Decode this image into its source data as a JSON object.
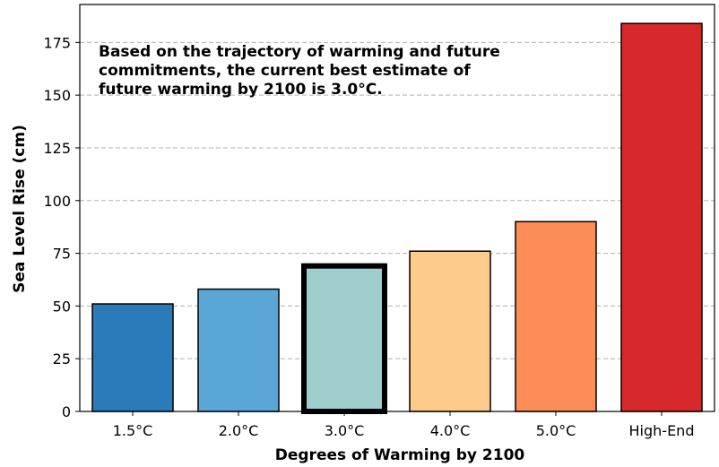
{
  "chart_data": {
    "type": "bar",
    "title": "",
    "xlabel": "Degrees of Warming by 2100",
    "ylabel": "Sea Level Rise (cm)",
    "categories": [
      "1.5°C",
      "2.0°C",
      "3.0°C",
      "4.0°C",
      "5.0°C",
      "High-End"
    ],
    "values": [
      51,
      58,
      69,
      76,
      90,
      184
    ],
    "colors": [
      "#2b7bba",
      "#5aa7d7",
      "#9ecfce",
      "#fdcb8b",
      "#fc8d59",
      "#d7282b"
    ],
    "highlighted_category": "3.0°C",
    "ylim": [
      0,
      193
    ],
    "yticks": [
      0,
      25,
      50,
      75,
      100,
      125,
      150,
      175
    ],
    "grid": "horizontal dashed",
    "annotation": {
      "lines": [
        "Based on the trajectory of warming and future",
        "commitments, the current best estimate of",
        "future warming by 2100 is 3.0°C."
      ]
    }
  }
}
